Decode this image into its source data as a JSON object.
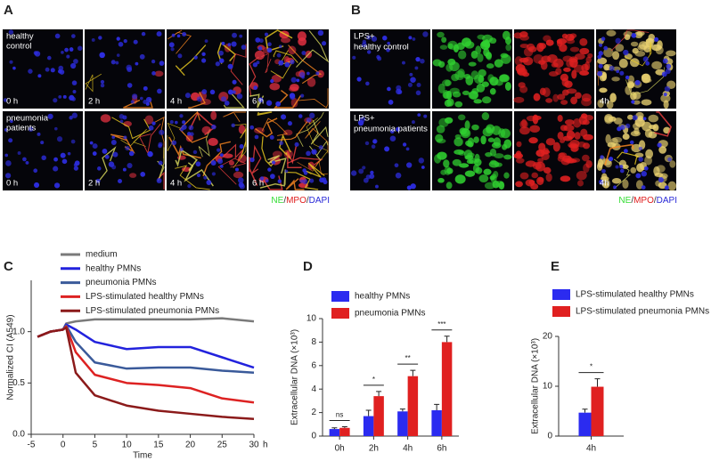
{
  "panels": [
    {
      "label": "A",
      "rows": [
        {
          "label": [
            "healthy",
            "control"
          ],
          "times": [
            "0 h",
            "2 h",
            "4 h",
            "6 h"
          ]
        },
        {
          "label": [
            "pneumonia",
            "patients"
          ],
          "times": [
            "0 h",
            "2 h",
            "4 h",
            "6 h"
          ]
        }
      ],
      "stain_legend": [
        {
          "text": "NE",
          "color": "#33dd33"
        },
        {
          "text": "/",
          "color": "#333333"
        },
        {
          "text": "MPO",
          "color": "#e02020"
        },
        {
          "text": "/",
          "color": "#333333"
        },
        {
          "text": "DAPI",
          "color": "#2a2ad8"
        }
      ]
    },
    {
      "label": "B",
      "rows": [
        {
          "label": [
            "LPS+",
            "healthy control"
          ],
          "time": "4h"
        },
        {
          "label": [
            "LPS+",
            "pneumonia patients"
          ],
          "time": "4h"
        }
      ],
      "stain_legend": [
        {
          "text": "NE",
          "color": "#33dd33"
        },
        {
          "text": "/",
          "color": "#333333"
        },
        {
          "text": "MPO",
          "color": "#e02020"
        },
        {
          "text": "/",
          "color": "#333333"
        },
        {
          "text": "DAPI",
          "color": "#2a2ad8"
        }
      ]
    }
  ],
  "chart_data": [
    {
      "type": "line",
      "panel": "C",
      "ylabel": "Normalized CI  (A549)",
      "xlabel": "Time",
      "xunit": "h",
      "x": [
        -4,
        -2,
        0,
        0.5,
        2,
        5,
        10,
        15,
        20,
        25,
        30
      ],
      "xlim": [
        -5,
        30
      ],
      "xticks": [
        -5,
        0,
        5,
        10,
        15,
        20,
        25,
        30
      ],
      "ylim": [
        0,
        1.5
      ],
      "yticks": [
        {
          "value": 0,
          "label": "0.0"
        },
        {
          "value": 0.5,
          "label": "0.5"
        },
        {
          "value": 1,
          "label": "1.0"
        }
      ],
      "series": [
        {
          "name": "medium",
          "color": "#7a7a7a",
          "values": [
            0.95,
            1.0,
            1.02,
            1.08,
            1.1,
            1.12,
            1.12,
            1.12,
            1.12,
            1.13,
            1.1
          ]
        },
        {
          "name": "healthy PMNs",
          "color": "#2222dd",
          "values": [
            0.95,
            1.0,
            1.02,
            1.07,
            1.02,
            0.9,
            0.83,
            0.85,
            0.85,
            0.75,
            0.65
          ]
        },
        {
          "name": "pneumonia PMNs",
          "color": "#3a5a9a",
          "values": [
            0.95,
            1.0,
            1.02,
            1.06,
            0.9,
            0.7,
            0.64,
            0.65,
            0.65,
            0.62,
            0.6
          ]
        },
        {
          "name": "LPS-stimulated healthy PMNs",
          "color": "#dd2222",
          "values": [
            0.95,
            1.0,
            1.02,
            1.05,
            0.8,
            0.58,
            0.5,
            0.48,
            0.45,
            0.35,
            0.31
          ]
        },
        {
          "name": "LPS-stimulated pneumonia PMNs",
          "color": "#8b1a1a",
          "values": [
            0.95,
            1.0,
            1.02,
            1.04,
            0.6,
            0.38,
            0.28,
            0.23,
            0.2,
            0.17,
            0.15
          ]
        }
      ]
    },
    {
      "type": "bar",
      "panel": "D",
      "ylabel": "Extracellular DNA (×10³)",
      "categories": [
        "0h",
        "2h",
        "4h",
        "6h"
      ],
      "ylim": [
        0,
        10
      ],
      "yticks": [
        0,
        2,
        4,
        6,
        8,
        10
      ],
      "series": [
        {
          "name": "healthy PMNs",
          "color": "#2b2bf0",
          "values": [
            0.6,
            1.7,
            2.1,
            2.2
          ],
          "errors": [
            0.1,
            0.5,
            0.2,
            0.5
          ]
        },
        {
          "name": "pneumonia PMNs",
          "color": "#e02020",
          "values": [
            0.7,
            3.4,
            5.1,
            8.0
          ],
          "errors": [
            0.1,
            0.4,
            0.5,
            0.5
          ]
        }
      ],
      "significance": [
        "ns",
        "*",
        "**",
        "***"
      ]
    },
    {
      "type": "bar",
      "panel": "E",
      "ylabel": "Extracellular DNA (×10³)",
      "categories": [
        "4h"
      ],
      "ylim": [
        0,
        20
      ],
      "yticks": [
        0,
        10,
        20
      ],
      "series": [
        {
          "name": "LPS-stimulated healthy PMNs",
          "color": "#2b2bf0",
          "values": [
            4.7
          ],
          "errors": [
            0.7
          ]
        },
        {
          "name": "LPS-stimulated pneumonia PMNs",
          "color": "#e02020",
          "values": [
            9.9
          ],
          "errors": [
            1.6
          ]
        }
      ],
      "significance": [
        "*"
      ]
    }
  ]
}
